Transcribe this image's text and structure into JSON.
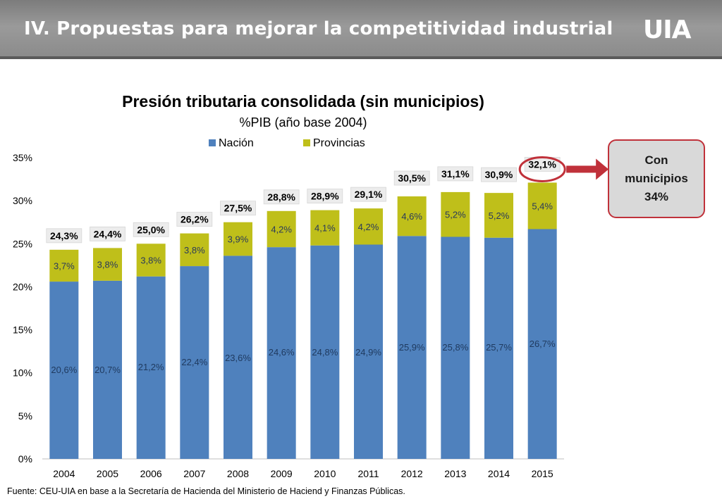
{
  "header": {
    "title": "IV. Propuestas para mejorar la competitividad industrial",
    "logo_text": "UIA"
  },
  "callout": {
    "text": "Con municipios 34%"
  },
  "source": "Fuente: CEU-UIA en base a la Secretaría de Hacienda del Ministerio de Haciend y Finanzas Públicas.",
  "colors": {
    "nacion": "#4f81bd",
    "provincias": "#bfbf1a",
    "highlight": "#c0313a"
  },
  "chart_data": {
    "type": "bar",
    "stacked": true,
    "title": "Presión tributaria consolidada (sin municipios)",
    "subtitle": "%PIB (año base 2004)",
    "categories": [
      "2004",
      "2005",
      "2006",
      "2007",
      "2008",
      "2009",
      "2010",
      "2011",
      "2012",
      "2013",
      "2014",
      "2015"
    ],
    "series": [
      {
        "name": "Nación",
        "values": [
          20.6,
          20.7,
          21.2,
          22.4,
          23.6,
          24.6,
          24.8,
          24.9,
          25.9,
          25.8,
          25.7,
          26.7
        ],
        "labels": [
          "20,6%",
          "20,7%",
          "21,2%",
          "22,4%",
          "23,6%",
          "24,6%",
          "24,8%",
          "24,9%",
          "25,9%",
          "25,8%",
          "25,7%",
          "26,7%"
        ]
      },
      {
        "name": "Provincias",
        "values": [
          3.7,
          3.8,
          3.8,
          3.8,
          3.9,
          4.2,
          4.1,
          4.2,
          4.6,
          5.2,
          5.2,
          5.4
        ],
        "labels": [
          "3,7%",
          "3,8%",
          "3,8%",
          "3,8%",
          "3,9%",
          "4,2%",
          "4,1%",
          "4,2%",
          "4,6%",
          "5,2%",
          "5,2%",
          "5,4%"
        ]
      }
    ],
    "totals": [
      24.3,
      24.4,
      25.0,
      26.2,
      27.5,
      28.8,
      28.9,
      29.1,
      30.5,
      31.1,
      30.9,
      32.1
    ],
    "total_labels": [
      "24,3%",
      "24,4%",
      "25,0%",
      "26,2%",
      "27,5%",
      "28,8%",
      "28,9%",
      "29,1%",
      "30,5%",
      "31,1%",
      "30,9%",
      "32,1%"
    ],
    "yticks": [
      0,
      5,
      10,
      15,
      20,
      25,
      30,
      35
    ],
    "ytick_labels": [
      "0%",
      "5%",
      "10%",
      "15%",
      "20%",
      "25%",
      "30%",
      "35%"
    ],
    "ylim": [
      0,
      35
    ],
    "legend": "top",
    "grid": false
  }
}
